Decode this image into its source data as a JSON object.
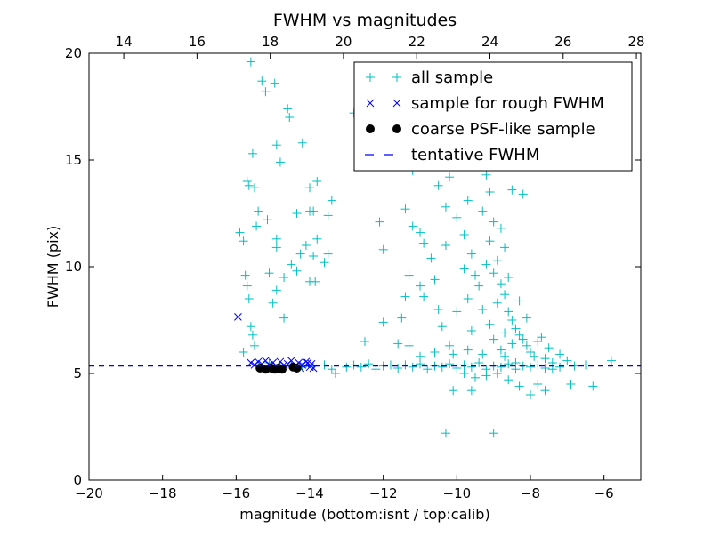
{
  "chart_data": {
    "type": "scatter",
    "title": "FWHM vs magnitudes",
    "xlabel": "magnitude (bottom:isnt / top:calib)",
    "ylabel": "FWHM (pix)",
    "xlim": [
      -20,
      -5
    ],
    "ylim": [
      0,
      20
    ],
    "top_xlim": [
      13.05,
      28.12
    ],
    "x_ticks": [
      -20,
      -18,
      -16,
      -14,
      -12,
      -10,
      -8,
      -6
    ],
    "x_tick_labels": [
      "−20",
      "−18",
      "−16",
      "−14",
      "−12",
      "−10",
      "−8",
      "−6"
    ],
    "top_ticks": [
      14,
      16,
      18,
      20,
      22,
      24,
      26,
      28
    ],
    "top_tick_labels": [
      "14",
      "16",
      "18",
      "20",
      "22",
      "24",
      "26",
      "28"
    ],
    "y_ticks": [
      0,
      5,
      10,
      15,
      20
    ],
    "y_tick_labels": [
      "0",
      "5",
      "10",
      "15",
      "20"
    ],
    "grid": false,
    "legend_position": "top-right",
    "colors": {
      "all": "#00bfbf",
      "rough": "#0000ff",
      "psf": "#000000",
      "line": "#0000ff"
    },
    "series": [
      {
        "name": "all sample",
        "marker": "plus",
        "points": [
          [
            -15.6,
            19.6
          ],
          [
            -15.3,
            18.7
          ],
          [
            -15.2,
            18.2
          ],
          [
            -14.95,
            18.6
          ],
          [
            -14.6,
            17.4
          ],
          [
            -14.55,
            17.0
          ],
          [
            -15.7,
            14.0
          ],
          [
            -15.65,
            13.8
          ],
          [
            -15.5,
            13.7
          ],
          [
            -15.55,
            15.3
          ],
          [
            -15.4,
            12.6
          ],
          [
            -15.45,
            11.9
          ],
          [
            -15.9,
            11.6
          ],
          [
            -15.8,
            11.2
          ],
          [
            -15.75,
            9.6
          ],
          [
            -15.65,
            8.5
          ],
          [
            -15.7,
            9.1
          ],
          [
            -15.6,
            7.2
          ],
          [
            -15.55,
            6.8
          ],
          [
            -15.5,
            6.3
          ],
          [
            -15.8,
            6.0
          ],
          [
            -14.9,
            15.7
          ],
          [
            -14.8,
            14.9
          ],
          [
            -14.2,
            15.8
          ],
          [
            -14.0,
            13.7
          ],
          [
            -13.8,
            14.0
          ],
          [
            -13.4,
            13.1
          ],
          [
            -13.5,
            12.4
          ],
          [
            -14.35,
            12.5
          ],
          [
            -14.0,
            12.6
          ],
          [
            -13.9,
            12.6
          ],
          [
            -14.9,
            11.3
          ],
          [
            -14.9,
            10.9
          ],
          [
            -14.5,
            10.1
          ],
          [
            -14.35,
            9.8
          ],
          [
            -14.1,
            11.0
          ],
          [
            -14.25,
            10.6
          ],
          [
            -14.7,
            9.5
          ],
          [
            -14.0,
            9.3
          ],
          [
            -13.85,
            9.3
          ],
          [
            -14.9,
            8.9
          ],
          [
            -15.0,
            8.3
          ],
          [
            -14.7,
            7.6
          ],
          [
            -13.6,
            10.2
          ],
          [
            -13.8,
            11.3
          ],
          [
            -13.9,
            10.5
          ],
          [
            -15.1,
            9.7
          ],
          [
            -15.15,
            12.2
          ],
          [
            -13.5,
            10.6
          ],
          [
            -12.8,
            17.2
          ],
          [
            -12.1,
            12.1
          ],
          [
            -12.0,
            10.8
          ],
          [
            -12.0,
            7.4
          ],
          [
            -12.5,
            6.5
          ],
          [
            -11.6,
            6.4
          ],
          [
            -11.3,
            6.3
          ],
          [
            -11.4,
            12.7
          ],
          [
            -11.0,
            11.6
          ],
          [
            -10.9,
            11.1
          ],
          [
            -11.2,
            11.9
          ],
          [
            -11.3,
            9.6
          ],
          [
            -11.0,
            9.1
          ],
          [
            -11.4,
            8.6
          ],
          [
            -11.5,
            7.6
          ],
          [
            -10.6,
            9.4
          ],
          [
            -10.5,
            8.0
          ],
          [
            -10.4,
            7.2
          ],
          [
            -10.2,
            6.3
          ],
          [
            -10.0,
            7.9
          ],
          [
            -10.1,
            4.2
          ],
          [
            -9.6,
            4.2
          ],
          [
            -10.3,
            2.2
          ],
          [
            -9.0,
            2.2
          ],
          [
            -10.5,
            13.8
          ],
          [
            -10.3,
            12.8
          ],
          [
            -10.0,
            12.3
          ],
          [
            -9.8,
            11.5
          ],
          [
            -9.6,
            10.6
          ],
          [
            -9.5,
            9.6
          ],
          [
            -9.4,
            9.1
          ],
          [
            -9.7,
            8.5
          ],
          [
            -9.2,
            14.3
          ],
          [
            -9.1,
            13.5
          ],
          [
            -9.0,
            12.1
          ],
          [
            -9.1,
            11.2
          ],
          [
            -8.9,
            10.3
          ],
          [
            -9.0,
            9.7
          ],
          [
            -8.8,
            9.2
          ],
          [
            -8.7,
            8.7
          ],
          [
            -8.9,
            8.3
          ],
          [
            -8.6,
            7.9
          ],
          [
            -8.5,
            7.5
          ],
          [
            -8.4,
            7.1
          ],
          [
            -8.3,
            6.8
          ],
          [
            -8.2,
            6.6
          ],
          [
            -8.1,
            6.3
          ],
          [
            -8.0,
            6.0
          ],
          [
            -7.9,
            5.8
          ],
          [
            -7.8,
            6.5
          ],
          [
            -7.7,
            6.7
          ],
          [
            -7.6,
            5.7
          ],
          [
            -7.5,
            6.2
          ],
          [
            -7.4,
            5.5
          ],
          [
            -7.2,
            5.9
          ],
          [
            -7.0,
            5.6
          ],
          [
            -6.9,
            4.5
          ],
          [
            -6.5,
            5.4
          ],
          [
            -6.3,
            4.4
          ],
          [
            -5.8,
            5.6
          ],
          [
            -7.6,
            4.2
          ],
          [
            -7.8,
            4.5
          ],
          [
            -8.0,
            4.0
          ],
          [
            -8.3,
            4.4
          ],
          [
            -8.6,
            4.7
          ],
          [
            -8.9,
            5.0
          ],
          [
            -9.2,
            4.9
          ],
          [
            -9.5,
            4.8
          ],
          [
            -9.8,
            5.0
          ],
          [
            -8.7,
            10.9
          ],
          [
            -8.8,
            11.8
          ],
          [
            -9.3,
            12.6
          ],
          [
            -9.7,
            13.1
          ],
          [
            -10.2,
            14.2
          ],
          [
            -10.8,
            15.7
          ],
          [
            -11.2,
            14.5
          ],
          [
            -9.9,
            15.2
          ],
          [
            -9.4,
            15.9
          ],
          [
            -8.9,
            14.8
          ],
          [
            -8.5,
            13.6
          ],
          [
            -8.2,
            13.4
          ],
          [
            -10.7,
            10.4
          ],
          [
            -10.9,
            8.6
          ],
          [
            -9.3,
            8.0
          ],
          [
            -9.1,
            7.3
          ],
          [
            -9.6,
            7.0
          ],
          [
            -8.8,
            6.1
          ],
          [
            -8.5,
            6.4
          ],
          [
            -8.7,
            5.8
          ],
          [
            -8.4,
            5.5
          ],
          [
            -9.0,
            6.6
          ],
          [
            -9.3,
            5.9
          ],
          [
            -9.7,
            6.1
          ],
          [
            -10.1,
            5.9
          ],
          [
            -10.6,
            6.0
          ],
          [
            -11.0,
            5.8
          ],
          [
            -8.1,
            7.6
          ],
          [
            -8.3,
            8.4
          ],
          [
            -8.6,
            9.5
          ],
          [
            -8.7,
            6.9
          ],
          [
            -9.2,
            10.1
          ],
          [
            -9.8,
            9.9
          ],
          [
            -10.3,
            11.0
          ],
          [
            -15.4,
            5.4
          ],
          [
            -15.1,
            5.5
          ],
          [
            -14.8,
            5.3
          ],
          [
            -14.5,
            5.4
          ],
          [
            -14.2,
            5.3
          ],
          [
            -13.9,
            5.35
          ],
          [
            -13.6,
            5.4
          ],
          [
            -13.4,
            5.2
          ],
          [
            -13.3,
            5.0
          ],
          [
            -13.0,
            5.3
          ],
          [
            -12.8,
            5.4
          ],
          [
            -12.6,
            5.3
          ],
          [
            -12.4,
            5.45
          ],
          [
            -12.2,
            5.2
          ],
          [
            -12.0,
            5.35
          ],
          [
            -11.8,
            5.4
          ],
          [
            -11.6,
            5.25
          ],
          [
            -11.4,
            5.4
          ],
          [
            -11.2,
            5.3
          ],
          [
            -11.0,
            5.45
          ],
          [
            -10.8,
            5.2
          ],
          [
            -10.6,
            5.35
          ],
          [
            -10.4,
            5.3
          ],
          [
            -10.2,
            5.45
          ],
          [
            -10.0,
            5.25
          ],
          [
            -9.8,
            5.4
          ],
          [
            -9.6,
            5.3
          ],
          [
            -9.4,
            5.5
          ],
          [
            -9.2,
            5.2
          ],
          [
            -9.0,
            5.35
          ],
          [
            -8.8,
            5.3
          ],
          [
            -8.6,
            5.45
          ],
          [
            -8.4,
            5.2
          ],
          [
            -8.2,
            5.35
          ],
          [
            -8.0,
            5.3
          ],
          [
            -7.8,
            5.4
          ],
          [
            -7.6,
            5.25
          ],
          [
            -7.4,
            5.2
          ],
          [
            -7.2,
            5.3
          ],
          [
            -6.8,
            5.35
          ]
        ]
      },
      {
        "name": "sample for rough FWHM",
        "marker": "x",
        "points": [
          [
            -15.95,
            7.65
          ],
          [
            -15.6,
            5.5
          ],
          [
            -15.5,
            5.4
          ],
          [
            -15.4,
            5.55
          ],
          [
            -15.3,
            5.45
          ],
          [
            -15.2,
            5.6
          ],
          [
            -15.1,
            5.4
          ],
          [
            -15.0,
            5.5
          ],
          [
            -14.9,
            5.35
          ],
          [
            -14.8,
            5.55
          ],
          [
            -14.7,
            5.4
          ],
          [
            -14.6,
            5.45
          ],
          [
            -14.5,
            5.6
          ],
          [
            -14.4,
            5.35
          ],
          [
            -14.3,
            5.5
          ],
          [
            -14.2,
            5.4
          ],
          [
            -14.1,
            5.55
          ],
          [
            -14.0,
            5.3
          ],
          [
            -13.95,
            5.45
          ],
          [
            -13.9,
            5.25
          ],
          [
            -14.25,
            5.25
          ],
          [
            -14.05,
            5.5
          ]
        ]
      },
      {
        "name": "coarse PSF-like sample",
        "marker": "circle",
        "points": [
          [
            -15.35,
            5.25
          ],
          [
            -15.2,
            5.2
          ],
          [
            -15.05,
            5.25
          ],
          [
            -14.95,
            5.2
          ],
          [
            -14.85,
            5.25
          ],
          [
            -14.75,
            5.2
          ],
          [
            -14.45,
            5.3
          ],
          [
            -14.35,
            5.25
          ]
        ]
      },
      {
        "name": "tentative FWHM",
        "marker": "dashed-line",
        "value": 5.35
      }
    ]
  }
}
